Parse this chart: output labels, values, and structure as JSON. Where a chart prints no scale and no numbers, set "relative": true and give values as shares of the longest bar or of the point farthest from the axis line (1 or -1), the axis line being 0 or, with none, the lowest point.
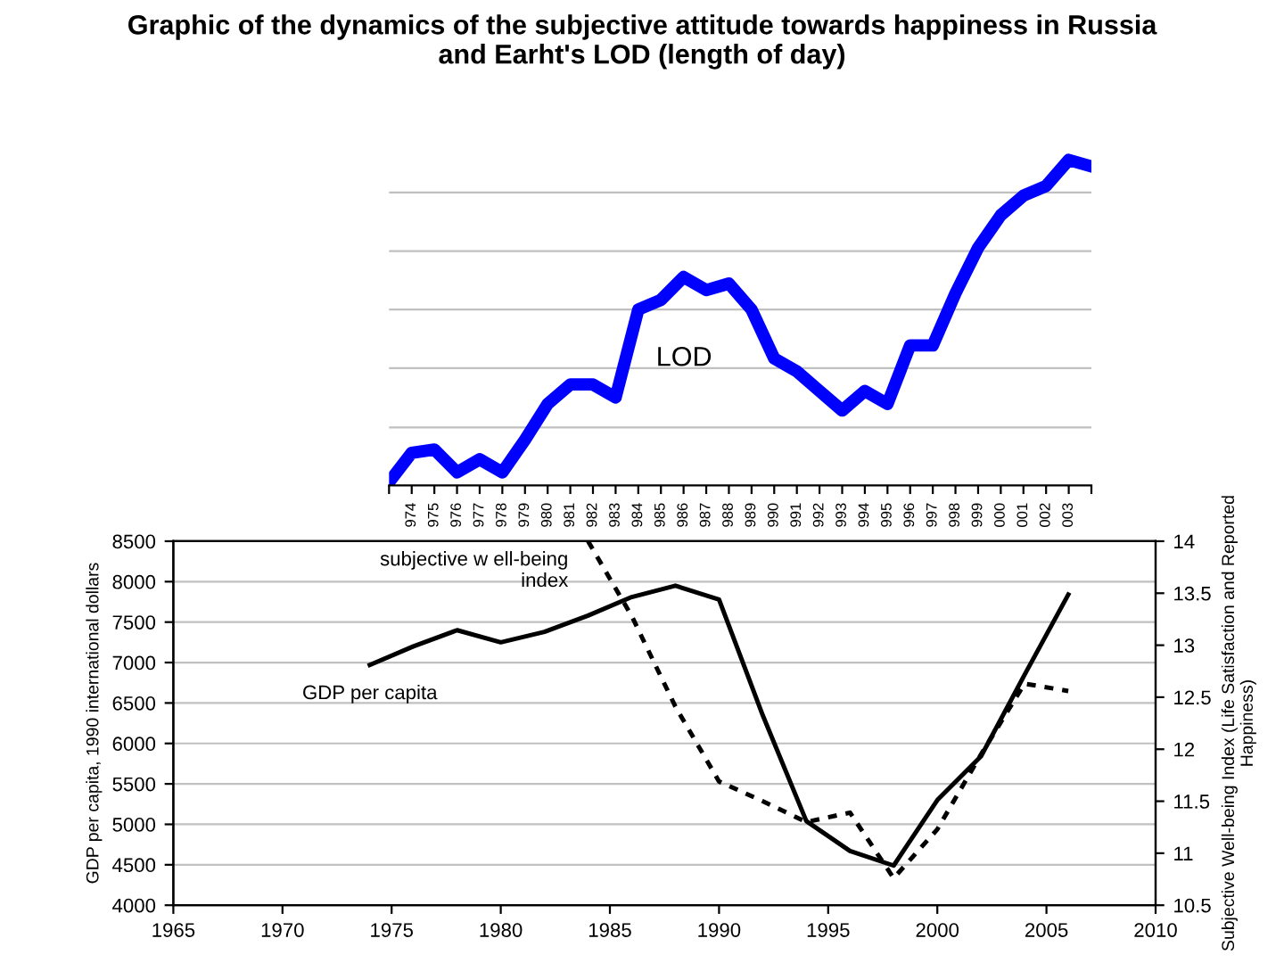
{
  "chart_data": [
    {
      "type": "line",
      "title": "Graphic of the dynamics of the subjective attitude towards happiness in Russia\nand Earht's LOD (length of day)",
      "relative": true,
      "grid": "y",
      "tick_labels": "x",
      "categories": [
        null,
        "974",
        "975",
        "976",
        "977",
        "978",
        "979",
        "980",
        "981",
        "982",
        "983",
        "984",
        "985",
        "986",
        "987",
        "988",
        "989",
        "990",
        "991",
        "992",
        "993",
        "994",
        "995",
        "996",
        "997",
        "998",
        "999",
        "000",
        "001",
        "002",
        "003",
        null
      ],
      "series": [
        {
          "name": "LOD",
          "color": "#0000ff",
          "values": [
            0.01,
            0.1,
            0.11,
            0.04,
            0.08,
            0.04,
            0.14,
            0.25,
            0.31,
            0.31,
            0.27,
            0.54,
            0.57,
            0.64,
            0.6,
            0.62,
            0.54,
            0.39,
            0.35,
            0.29,
            0.23,
            0.29,
            0.25,
            0.43,
            0.43,
            0.59,
            0.73,
            0.83,
            0.89,
            0.92,
            1.0,
            0.98
          ]
        }
      ]
    },
    {
      "type": "line",
      "xlabel": null,
      "ylabel": "GDP per capita, 1990 international dollars",
      "y2label": "Subjective Well-being Index (Life Satisfaction and Reported Happiness)",
      "grid": "y",
      "xlim": [
        1965,
        2010
      ],
      "xticks": [
        1965,
        1970,
        1975,
        1980,
        1985,
        1990,
        1995,
        2000,
        2005,
        2010
      ],
      "ylim": [
        4000,
        8500
      ],
      "yticks": [
        4000,
        4500,
        5000,
        5500,
        6000,
        6500,
        7000,
        7500,
        8000,
        8500
      ],
      "y2lim": [
        10.5,
        14
      ],
      "y2ticks": [
        10.5,
        11,
        11.5,
        12,
        12.5,
        13,
        13.5,
        14
      ],
      "series": [
        {
          "name": "GDP per capita",
          "color": "#000000",
          "line_style": "solid",
          "x": [
            1974,
            1976,
            1978,
            1980,
            1982,
            1984,
            1986,
            1988,
            1990,
            1992,
            1994,
            1996,
            1998,
            2000,
            2002,
            2004,
            2006
          ],
          "values": [
            6970,
            7200,
            7400,
            7250,
            7380,
            7580,
            7810,
            7950,
            7780,
            6350,
            5040,
            4670,
            4490,
            5300,
            5840,
            6850,
            7840
          ]
        },
        {
          "name": "subjective w ell-being\nindex",
          "color": "#000000",
          "line_style": "dotted",
          "axis": "y2",
          "x": [
            1984,
            1986,
            1988,
            1990,
            1992,
            1994,
            1996,
            1998,
            2000,
            2002,
            2004,
            2006
          ],
          "values": [
            14.0,
            13.28,
            12.41,
            11.69,
            11.5,
            11.3,
            11.39,
            10.76,
            11.23,
            11.95,
            12.63,
            12.56
          ]
        }
      ]
    }
  ]
}
